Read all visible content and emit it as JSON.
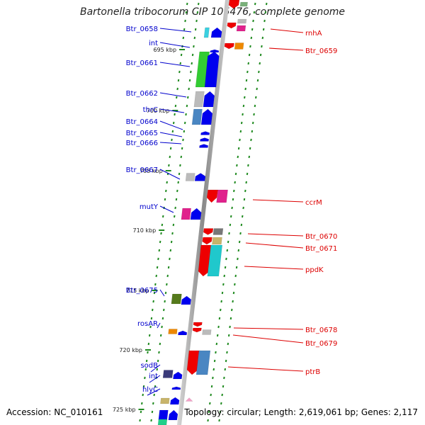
{
  "title": "Bartonella tribocorum CIP 105476, complete genome",
  "footer": {
    "accession": "Accession: NC_010161",
    "summary": "Topology: circular; Length: 2,619,061 bp; Genes: 2,117"
  },
  "colors": {
    "axis": "#9a9a9a",
    "ticks": "#1f8a1f",
    "left_labels": "#0000cc",
    "right_labels": "#dd0000"
  },
  "kbp_ticks": [
    "695 kbp",
    "700 kbp",
    "705 kbp",
    "710 kbp",
    "715 kbp",
    "720 kbp",
    "725 kbp"
  ],
  "left_labels": [
    "Btr_0658",
    "int",
    "Btr_0661",
    "Btr_0662",
    "thrC",
    "Btr_0664",
    "Btr_0665",
    "Btr_0666",
    "Btr_0667",
    "mutY",
    "Btr_0675",
    "rosAR",
    "sodB",
    "int",
    "hlyC"
  ],
  "right_labels": [
    "rnhA",
    "Btr_0659",
    "ccrM",
    "Btr_0670",
    "Btr_0671",
    "ppdK",
    "Btr_0678",
    "Btr_0679",
    "ptrB"
  ]
}
